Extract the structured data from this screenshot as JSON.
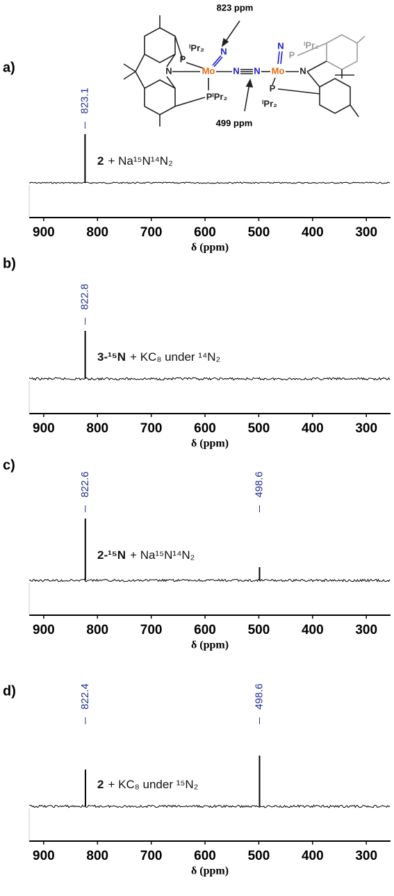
{
  "chart_data": [
    {
      "type": "spectrum",
      "panel": "a)",
      "compound": "2",
      "reagent": "+ Na¹⁵N¹⁴N₂",
      "x": [
        823.1
      ],
      "values": [
        70
      ],
      "xlim": [
        927,
        255
      ],
      "xticks": [
        900,
        800,
        700,
        600,
        500,
        400,
        300
      ],
      "xlabel": "δ (ppm)",
      "color": "#000000",
      "peak_label_color": "#1f2d8f",
      "annotations": [
        "823 ppm",
        "499 ppm"
      ],
      "structure_labels": [
        "ⁱPr₂",
        "P",
        "N",
        "Mo",
        "N",
        "N",
        "N",
        "Mo",
        "N",
        "PⁱPr₂",
        "N",
        "P",
        "ⁱPr₂",
        "P",
        "ⁱPr₂"
      ]
    },
    {
      "type": "spectrum",
      "panel": "b)",
      "compound": "3-¹⁵N",
      "reagent": "+ KC₈ under ¹⁴N₂",
      "x": [
        822.8
      ],
      "values": [
        69
      ],
      "xlim": [
        927,
        255
      ],
      "xticks": [
        900,
        800,
        700,
        600,
        500,
        400,
        300
      ],
      "xlabel": "δ (ppm)",
      "color": "#000000",
      "peak_label_color": "#1f2d8f"
    },
    {
      "type": "spectrum",
      "panel": "c)",
      "compound": "2-¹⁵N",
      "reagent": "+ Na¹⁵N¹⁴N₂",
      "x": [
        822.6,
        498.6
      ],
      "values": [
        89,
        19
      ],
      "xlim": [
        927,
        255
      ],
      "xticks": [
        900,
        800,
        700,
        600,
        500,
        400,
        300
      ],
      "xlabel": "δ (ppm)",
      "color": "#000000",
      "peak_label_color": "#1f2d8f"
    },
    {
      "type": "spectrum",
      "panel": "d)",
      "compound": "2",
      "reagent": "+ KC₈ under ¹⁵N₂",
      "x": [
        822.4,
        498.6
      ],
      "values": [
        53,
        73
      ],
      "xlim": [
        927,
        255
      ],
      "xticks": [
        900,
        800,
        700,
        600,
        500,
        400,
        300
      ],
      "xlabel": "δ (ppm)",
      "color": "#000000",
      "peak_label_color": "#1f2d8f"
    }
  ]
}
